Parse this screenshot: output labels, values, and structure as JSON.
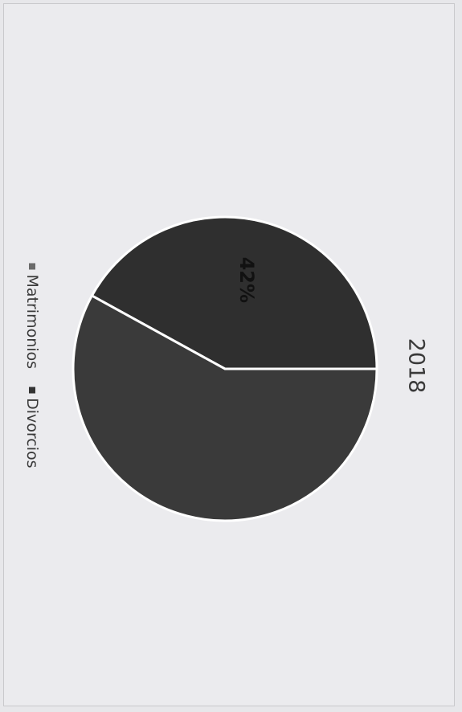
{
  "chart_data": {
    "type": "pie",
    "title": "2018",
    "slices": [
      {
        "name": "Matrimonios",
        "value": 58,
        "color": "#3a3a3a",
        "label": ""
      },
      {
        "name": "Divorcios",
        "value": 42,
        "color": "#2f2f2f",
        "label": "42%"
      }
    ],
    "legend_position": "bottom",
    "orientation": "rotated 90 degrees clockwise"
  }
}
